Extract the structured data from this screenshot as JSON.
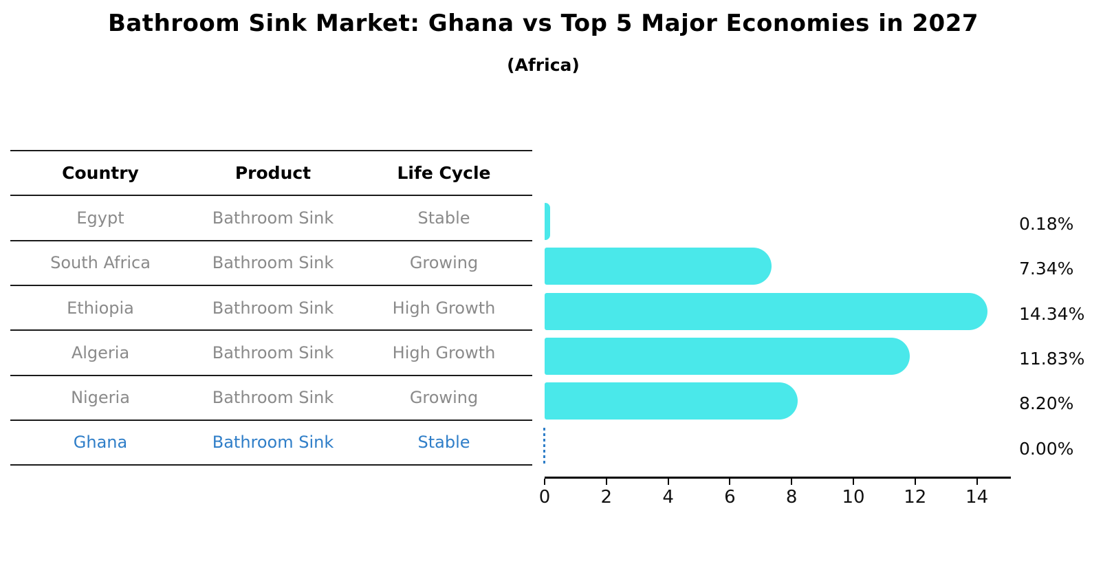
{
  "title": "Bathroom Sink Market: Ghana vs Top 5 Major Economies in 2027",
  "subtitle": "(Africa)",
  "table": {
    "headers": [
      "Country",
      "Product",
      "Life Cycle"
    ],
    "rows": [
      {
        "country": "Egypt",
        "product": "Bathroom Sink",
        "life_cycle": "Stable",
        "highlight": false
      },
      {
        "country": "South Africa",
        "product": "Bathroom Sink",
        "life_cycle": "Growing",
        "highlight": false
      },
      {
        "country": "Ethiopia",
        "product": "Bathroom Sink",
        "life_cycle": "High Growth",
        "highlight": false
      },
      {
        "country": "Algeria",
        "product": "Bathroom Sink",
        "life_cycle": "High Growth",
        "highlight": false
      },
      {
        "country": "Nigeria",
        "product": "Bathroom Sink",
        "life_cycle": "Growing",
        "highlight": false
      },
      {
        "country": "Ghana",
        "product": "Bathroom Sink",
        "life_cycle": "Stable",
        "highlight": true
      }
    ]
  },
  "chart_data": {
    "type": "bar",
    "orientation": "horizontal",
    "title": "Bathroom Sink Market: Ghana vs Top 5 Major Economies in 2027",
    "subtitle": "(Africa)",
    "categories": [
      "Egypt",
      "South Africa",
      "Ethiopia",
      "Algeria",
      "Nigeria",
      "Ghana"
    ],
    "values": [
      0.18,
      7.34,
      14.34,
      11.83,
      8.2,
      0.0
    ],
    "value_labels": [
      "0.18%",
      "7.34%",
      "14.34%",
      "11.83%",
      "8.20%",
      "0.00%"
    ],
    "xlabel": "",
    "ylabel": "",
    "xlim": [
      0,
      15.1
    ],
    "xticks": [
      0,
      2,
      4,
      6,
      8,
      10,
      12,
      14
    ],
    "grid": false,
    "legend": false
  },
  "colors": {
    "bar": "#4AE8EA",
    "highlight": "#2F7EC8",
    "table_text": "#8a8a8a",
    "line": "#1a1a1a",
    "background": "#ffffff"
  }
}
